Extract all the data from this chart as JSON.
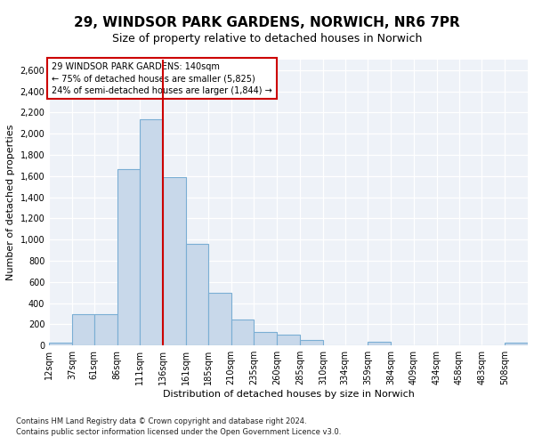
{
  "title1": "29, WINDSOR PARK GARDENS, NORWICH, NR6 7PR",
  "title2": "Size of property relative to detached houses in Norwich",
  "xlabel": "Distribution of detached houses by size in Norwich",
  "ylabel": "Number of detached properties",
  "footnote1": "Contains HM Land Registry data © Crown copyright and database right 2024.",
  "footnote2": "Contains public sector information licensed under the Open Government Licence v3.0.",
  "annotation_line1": "29 WINDSOR PARK GARDENS: 140sqm",
  "annotation_line2": "← 75% of detached houses are smaller (5,825)",
  "annotation_line3": "24% of semi-detached houses are larger (1,844) →",
  "bar_color": "#c8d8ea",
  "bar_edge_color": "#7aaed4",
  "vline_color": "#cc0000",
  "vline_x": 136,
  "categories": [
    "12sqm",
    "37sqm",
    "61sqm",
    "86sqm",
    "111sqm",
    "136sqm",
    "161sqm",
    "185sqm",
    "210sqm",
    "235sqm",
    "260sqm",
    "285sqm",
    "310sqm",
    "334sqm",
    "359sqm",
    "384sqm",
    "409sqm",
    "434sqm",
    "458sqm",
    "483sqm",
    "508sqm"
  ],
  "bin_edges": [
    12,
    37,
    61,
    86,
    111,
    136,
    161,
    185,
    210,
    235,
    260,
    285,
    310,
    334,
    359,
    384,
    409,
    434,
    458,
    483,
    508,
    533
  ],
  "counts": [
    25,
    295,
    295,
    1670,
    2140,
    1590,
    960,
    500,
    250,
    125,
    100,
    50,
    5,
    5,
    35,
    5,
    5,
    5,
    5,
    5,
    25
  ],
  "ylim": [
    0,
    2700
  ],
  "yticks": [
    0,
    200,
    400,
    600,
    800,
    1000,
    1200,
    1400,
    1600,
    1800,
    2000,
    2200,
    2400,
    2600
  ],
  "plot_bg_color": "#eef2f8",
  "title1_fontsize": 11,
  "title2_fontsize": 9,
  "ylabel_fontsize": 8,
  "xlabel_fontsize": 8,
  "tick_fontsize": 7,
  "annot_fontsize": 7,
  "footnote_fontsize": 6
}
